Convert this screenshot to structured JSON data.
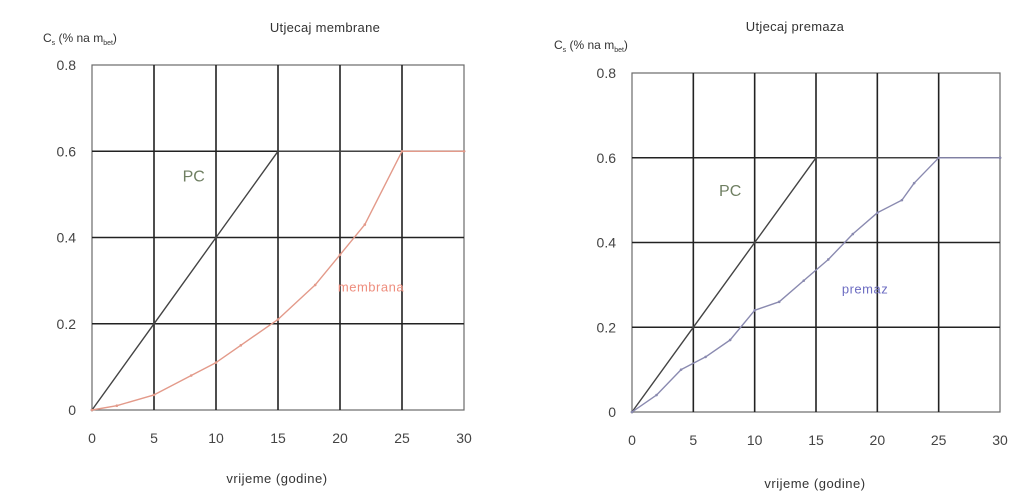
{
  "chart_data": [
    {
      "type": "line",
      "title": "Utjecaj membrane",
      "ylabel_main": "C",
      "ylabel_sub": "s",
      "ylabel_rest": " (% na m",
      "ylabel_sub2": "bet",
      "ylabel_close": ")",
      "xlabel": "vrijeme (godine)",
      "xlim": [
        0,
        30
      ],
      "ylim": [
        0,
        0.8
      ],
      "x_ticks": [
        0,
        5,
        10,
        15,
        20,
        25,
        30
      ],
      "x_tick_labels": [
        "0",
        "5",
        "10",
        "15",
        "20",
        "25",
        "30"
      ],
      "y_ticks": [
        0,
        0.2,
        0.4,
        0.6,
        0.8
      ],
      "y_tick_labels": [
        "0",
        "0.2",
        "0.4",
        "0.6",
        "0.8"
      ],
      "grid": true,
      "series": [
        {
          "label": "PC",
          "color": "#444444",
          "label_color": "#6f7f62",
          "x": [
            0,
            5,
            10,
            15,
            30
          ],
          "y": [
            0,
            0.2,
            0.4,
            0.6,
            0.6
          ]
        },
        {
          "label": "membrana",
          "color": "#e39a8a",
          "label_color": "#ee8d7d",
          "x": [
            0,
            2,
            5,
            8,
            10,
            12,
            15,
            18,
            20,
            22,
            25,
            30
          ],
          "y": [
            0,
            0.01,
            0.035,
            0.08,
            0.11,
            0.15,
            0.21,
            0.29,
            0.36,
            0.43,
            0.6,
            0.6
          ]
        }
      ],
      "annotations": [
        {
          "text": "PC",
          "x": 8.2,
          "y": 0.53,
          "color": "#6f7f62",
          "size": "big"
        },
        {
          "text": "membrana",
          "x": 22.5,
          "y": 0.275,
          "color": "#ee8d7d",
          "size": "small"
        }
      ]
    },
    {
      "type": "line",
      "title": "Utjecaj premaza",
      "ylabel_main": "C",
      "ylabel_sub": "s",
      "ylabel_rest": " (% na m",
      "ylabel_sub2": "bet",
      "ylabel_close": ")",
      "xlabel": "vrijeme (godine)",
      "xlim": [
        0,
        30
      ],
      "ylim": [
        0,
        0.8
      ],
      "x_ticks": [
        0,
        5,
        10,
        15,
        20,
        25,
        30
      ],
      "x_tick_labels": [
        "0",
        "5",
        "10",
        "15",
        "20",
        "25",
        "30"
      ],
      "y_ticks": [
        0,
        0.2,
        0.4,
        0.6,
        0.8
      ],
      "y_tick_labels": [
        "0",
        "0.2",
        "0.4",
        "0.6",
        "0.8"
      ],
      "grid": true,
      "series": [
        {
          "label": "PC",
          "color": "#444444",
          "label_color": "#6f7f62",
          "x": [
            0,
            5,
            10,
            15,
            30
          ],
          "y": [
            0,
            0.2,
            0.4,
            0.6,
            0.6
          ]
        },
        {
          "label": "premaz",
          "color": "#8a8ab0",
          "label_color": "#6d6dc2",
          "x": [
            0,
            2,
            4,
            6,
            8,
            10,
            12,
            14,
            16,
            18,
            20,
            22,
            23,
            25,
            30
          ],
          "y": [
            0,
            0.04,
            0.1,
            0.13,
            0.17,
            0.24,
            0.26,
            0.31,
            0.36,
            0.42,
            0.47,
            0.5,
            0.54,
            0.6,
            0.6
          ]
        }
      ],
      "annotations": [
        {
          "text": "PC",
          "x": 8.0,
          "y": 0.51,
          "color": "#6f7f62",
          "size": "big"
        },
        {
          "text": "premaz",
          "x": 19.0,
          "y": 0.28,
          "color": "#6d6dc2",
          "size": "small"
        }
      ]
    }
  ]
}
